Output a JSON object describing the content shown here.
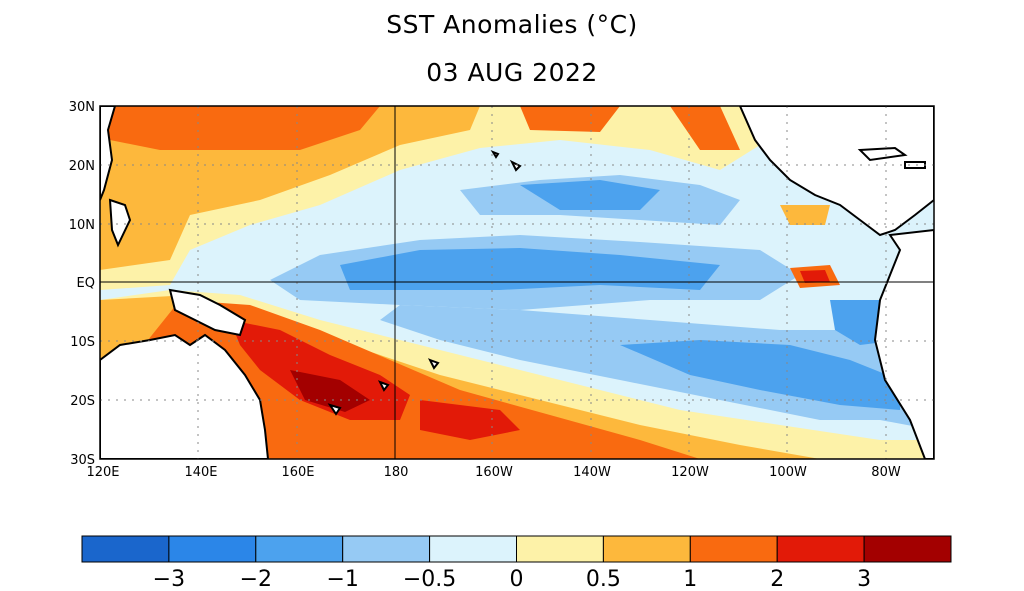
{
  "title": "SST Anomalies (°C)",
  "date": "03 AUG 2022",
  "latitude_labels": [
    "30N",
    "20N",
    "10N",
    "EQ",
    "10S",
    "20S",
    "30S"
  ],
  "longitude_labels": [
    "120E",
    "140E",
    "160E",
    "180",
    "160W",
    "140W",
    "120W",
    "100W",
    "80W"
  ],
  "colorbar": {
    "colors": [
      "#1a66cc",
      "#2b86e8",
      "#4ca2ee",
      "#96caf4",
      "#dcf3fc",
      "#fdf2a8",
      "#fdb83c",
      "#f96a10",
      "#e21a08",
      "#a30000"
    ],
    "tick_labels": [
      "−3",
      "−2",
      "−1",
      "−0.5",
      "0",
      "0.5",
      "1",
      "2",
      "3"
    ]
  }
}
